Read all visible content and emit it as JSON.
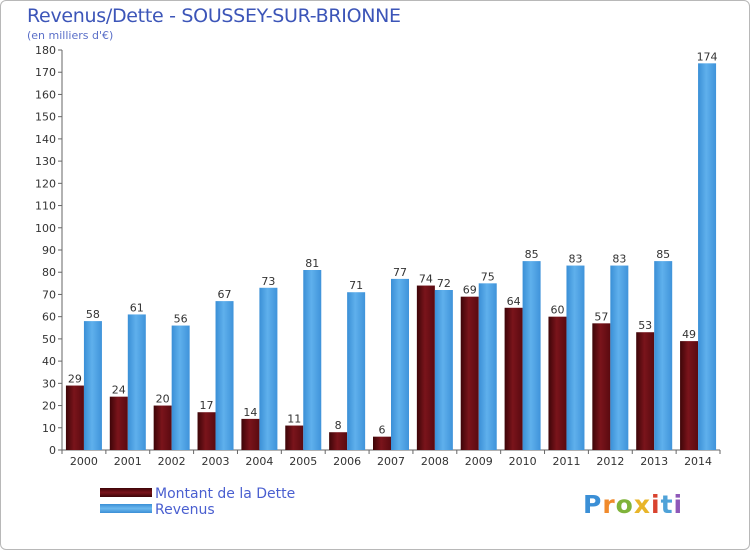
{
  "title": "Revenus/Dette - SOUSSEY-SUR-BRIONNE",
  "subtitle": "(en milliers d'€)",
  "logo_text": "Proxiti",
  "colors": {
    "dette": "#6b0e14",
    "revenus": "#4a9fe0",
    "axis": "#555555"
  },
  "chart_data": {
    "type": "bar",
    "categories": [
      "2000",
      "2001",
      "2002",
      "2003",
      "2004",
      "2005",
      "2006",
      "2007",
      "2008",
      "2009",
      "2010",
      "2011",
      "2012",
      "2013",
      "2014"
    ],
    "series": [
      {
        "name": "Montant de la Dette",
        "values": [
          29,
          24,
          20,
          17,
          14,
          11,
          8,
          6,
          74,
          69,
          64,
          60,
          57,
          53,
          49
        ]
      },
      {
        "name": "Revenus",
        "values": [
          58,
          61,
          56,
          67,
          73,
          81,
          71,
          77,
          72,
          75,
          85,
          83,
          83,
          85,
          174
        ]
      }
    ],
    "title": "Revenus/Dette - SOUSSEY-SUR-BRIONNE",
    "ylabel": "(en milliers d'€)",
    "ylim": [
      0,
      180
    ],
    "yticks": [
      0,
      10,
      20,
      30,
      40,
      50,
      60,
      70,
      80,
      90,
      100,
      110,
      120,
      130,
      140,
      150,
      160,
      170,
      180
    ],
    "grid": false,
    "legend": "bottom-left"
  },
  "legend": [
    {
      "label": "Montant de la Dette"
    },
    {
      "label": "Revenus"
    }
  ]
}
